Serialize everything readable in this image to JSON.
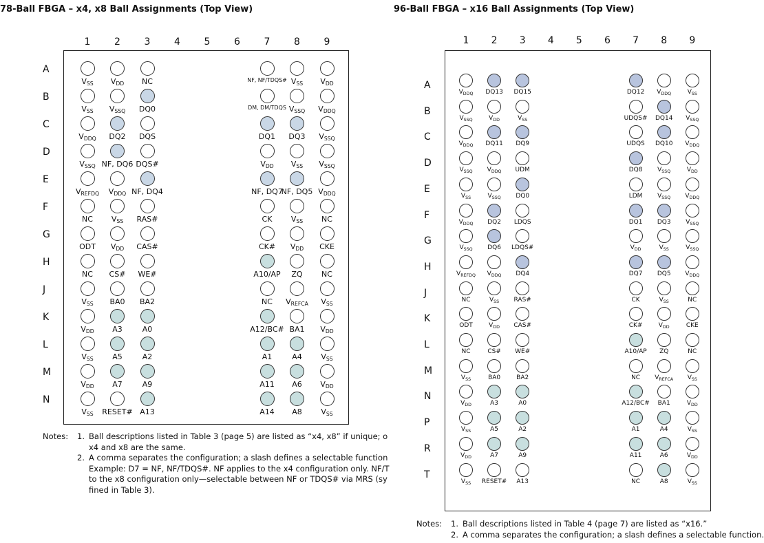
{
  "colors": {
    "dq_fill": "#c9d7e6",
    "dq16_fill": "#b8c4de",
    "addr_fill": "#c8dfdf",
    "outline": "#333333"
  },
  "left": {
    "title": "78-Ball FBGA – x4, x8 Ball Assignments (Top View)",
    "columns": [
      "1",
      "2",
      "3",
      "4",
      "5",
      "6",
      "7",
      "8",
      "9"
    ],
    "rows": [
      {
        "r": "A",
        "b": [
          [
            "V_SS",
            ""
          ],
          [
            "V_DD",
            ""
          ],
          [
            "NC",
            ""
          ],
          [
            "NF, NF/TDQS#",
            "",
            "s"
          ],
          [
            "V_SS",
            ""
          ],
          [
            "V_DD",
            ""
          ]
        ]
      },
      {
        "r": "B",
        "b": [
          [
            "V_SS",
            ""
          ],
          [
            "V_SSQ",
            ""
          ],
          [
            "DQ0",
            "d"
          ],
          [
            "DM, DM/TDQS",
            "",
            "s"
          ],
          [
            "V_SSQ",
            ""
          ],
          [
            "V_DDQ",
            ""
          ]
        ]
      },
      {
        "r": "C",
        "b": [
          [
            "V_DDQ",
            ""
          ],
          [
            "DQ2",
            "d"
          ],
          [
            "DQS",
            ""
          ],
          [
            "DQ1",
            "d"
          ],
          [
            "DQ3",
            "d"
          ],
          [
            "V_SSQ",
            ""
          ]
        ]
      },
      {
        "r": "D",
        "b": [
          [
            "V_SSQ",
            ""
          ],
          [
            "NF, DQ6",
            "d"
          ],
          [
            "DQS#",
            ""
          ],
          [
            "V_DD",
            ""
          ],
          [
            "V_SS",
            ""
          ],
          [
            "V_SSQ",
            ""
          ]
        ]
      },
      {
        "r": "E",
        "b": [
          [
            "V_REFDQ",
            ""
          ],
          [
            "V_DDQ",
            ""
          ],
          [
            "NF, DQ4",
            "d"
          ],
          [
            "NF, DQ7",
            "d"
          ],
          [
            "NF, DQ5",
            "d"
          ],
          [
            "V_DDQ",
            ""
          ]
        ]
      },
      {
        "r": "F",
        "b": [
          [
            "NC",
            ""
          ],
          [
            "V_SS",
            ""
          ],
          [
            "RAS#",
            ""
          ],
          [
            "CK",
            ""
          ],
          [
            "V_SS",
            ""
          ],
          [
            "NC",
            ""
          ]
        ]
      },
      {
        "r": "G",
        "b": [
          [
            "ODT",
            ""
          ],
          [
            "V_DD",
            ""
          ],
          [
            "CAS#",
            ""
          ],
          [
            "CK#",
            ""
          ],
          [
            "V_DD",
            ""
          ],
          [
            "CKE",
            ""
          ]
        ]
      },
      {
        "r": "H",
        "b": [
          [
            "NC",
            ""
          ],
          [
            "CS#",
            ""
          ],
          [
            "WE#",
            ""
          ],
          [
            "A10/AP",
            "a"
          ],
          [
            "ZQ",
            ""
          ],
          [
            "NC",
            ""
          ]
        ]
      },
      {
        "r": "J",
        "b": [
          [
            "V_SS",
            ""
          ],
          [
            "BA0",
            ""
          ],
          [
            "BA2",
            ""
          ],
          [
            "NC",
            ""
          ],
          [
            "V_REFCA",
            ""
          ],
          [
            "V_SS",
            ""
          ]
        ]
      },
      {
        "r": "K",
        "b": [
          [
            "V_DD",
            ""
          ],
          [
            "A3",
            "a"
          ],
          [
            "A0",
            "a"
          ],
          [
            "A12/BC#",
            "a"
          ],
          [
            "BA1",
            ""
          ],
          [
            "V_DD",
            ""
          ]
        ]
      },
      {
        "r": "L",
        "b": [
          [
            "V_SS",
            ""
          ],
          [
            "A5",
            "a"
          ],
          [
            "A2",
            "a"
          ],
          [
            "A1",
            "a"
          ],
          [
            "A4",
            "a"
          ],
          [
            "V_SS",
            ""
          ]
        ]
      },
      {
        "r": "M",
        "b": [
          [
            "V_DD",
            ""
          ],
          [
            "A7",
            "a"
          ],
          [
            "A9",
            "a"
          ],
          [
            "A11",
            "a"
          ],
          [
            "A6",
            "a"
          ],
          [
            "V_DD",
            ""
          ]
        ]
      },
      {
        "r": "N",
        "b": [
          [
            "V_SS",
            ""
          ],
          [
            "RESET#",
            ""
          ],
          [
            "A13",
            "a"
          ],
          [
            "A14",
            "a"
          ],
          [
            "A8",
            "a"
          ],
          [
            "V_SS",
            ""
          ]
        ]
      }
    ],
    "notes": {
      "heading": "Notes:",
      "items": [
        {
          "num": "1.",
          "lines": [
            "Ball descriptions listed in Table 3 (page 5) are listed as “x4, x8” if unique; o",
            "x4 and x8 are the same."
          ]
        },
        {
          "num": "2.",
          "lines": [
            "A comma separates the configuration; a slash defines a selectable function",
            "Example: D7 = NF, NF/TDQS#. NF applies to the x4 configuration only. NF/T",
            "to the x8 configuration only—selectable between NF or TDQS# via MRS (sy",
            "fined in Table 3)."
          ]
        }
      ]
    }
  },
  "right": {
    "title": "96-Ball FBGA – x16 Ball Assignments (Top View)",
    "columns": [
      "1",
      "2",
      "3",
      "4",
      "5",
      "6",
      "7",
      "8",
      "9"
    ],
    "rows": [
      {
        "r": "A",
        "b": [
          [
            "V_DDQ",
            ""
          ],
          [
            "DQ13",
            "d"
          ],
          [
            "DQ15",
            "d"
          ],
          [
            "DQ12",
            "d"
          ],
          [
            "V_DDQ",
            ""
          ],
          [
            "V_SS",
            ""
          ]
        ]
      },
      {
        "r": "B",
        "b": [
          [
            "V_SSQ",
            ""
          ],
          [
            "V_DD",
            ""
          ],
          [
            "V_SS",
            ""
          ],
          [
            "UDQS#",
            ""
          ],
          [
            "DQ14",
            "d"
          ],
          [
            "V_SSQ",
            ""
          ]
        ]
      },
      {
        "r": "C",
        "b": [
          [
            "V_DDQ",
            ""
          ],
          [
            "DQ11",
            "d"
          ],
          [
            "DQ9",
            "d"
          ],
          [
            "UDQS",
            ""
          ],
          [
            "DQ10",
            "d"
          ],
          [
            "V_DDQ",
            ""
          ]
        ]
      },
      {
        "r": "D",
        "b": [
          [
            "V_SSQ",
            ""
          ],
          [
            "V_DDQ",
            ""
          ],
          [
            "UDM",
            ""
          ],
          [
            "DQ8",
            "d"
          ],
          [
            "V_SSQ",
            ""
          ],
          [
            "V_DD",
            ""
          ]
        ]
      },
      {
        "r": "E",
        "b": [
          [
            "V_SS",
            ""
          ],
          [
            "V_SSQ",
            ""
          ],
          [
            "DQ0",
            "d"
          ],
          [
            "LDM",
            ""
          ],
          [
            "V_SSQ",
            ""
          ],
          [
            "V_DDQ",
            ""
          ]
        ]
      },
      {
        "r": "F",
        "b": [
          [
            "V_DDQ",
            ""
          ],
          [
            "DQ2",
            "d"
          ],
          [
            "LDQS",
            ""
          ],
          [
            "DQ1",
            "d"
          ],
          [
            "DQ3",
            "d"
          ],
          [
            "V_SSQ",
            ""
          ]
        ]
      },
      {
        "r": "G",
        "b": [
          [
            "V_SSQ",
            ""
          ],
          [
            "DQ6",
            "d"
          ],
          [
            "LDQS#",
            ""
          ],
          [
            "V_DD",
            ""
          ],
          [
            "V_SS",
            ""
          ],
          [
            "V_SSQ",
            ""
          ]
        ]
      },
      {
        "r": "H",
        "b": [
          [
            "V_REFDQ",
            ""
          ],
          [
            "V_DDQ",
            ""
          ],
          [
            "DQ4",
            "d"
          ],
          [
            "DQ7",
            "d"
          ],
          [
            "DQ5",
            "d"
          ],
          [
            "V_DDQ",
            ""
          ]
        ]
      },
      {
        "r": "J",
        "b": [
          [
            "NC",
            ""
          ],
          [
            "V_SS",
            ""
          ],
          [
            "RAS#",
            ""
          ],
          [
            "CK",
            ""
          ],
          [
            "V_SS",
            ""
          ],
          [
            "NC",
            ""
          ]
        ]
      },
      {
        "r": "K",
        "b": [
          [
            "ODT",
            ""
          ],
          [
            "V_DD",
            ""
          ],
          [
            "CAS#",
            ""
          ],
          [
            "CK#",
            ""
          ],
          [
            "V_DD",
            ""
          ],
          [
            "CKE",
            ""
          ]
        ]
      },
      {
        "r": "L",
        "b": [
          [
            "NC",
            ""
          ],
          [
            "CS#",
            ""
          ],
          [
            "WE#",
            ""
          ],
          [
            "A10/AP",
            "a"
          ],
          [
            "ZQ",
            ""
          ],
          [
            "NC",
            ""
          ]
        ]
      },
      {
        "r": "M",
        "b": [
          [
            "V_SS",
            ""
          ],
          [
            "BA0",
            ""
          ],
          [
            "BA2",
            ""
          ],
          [
            "NC",
            ""
          ],
          [
            "V_REFCA",
            ""
          ],
          [
            "V_SS",
            ""
          ]
        ]
      },
      {
        "r": "N",
        "b": [
          [
            "V_DD",
            ""
          ],
          [
            "A3",
            "a"
          ],
          [
            "A0",
            "a"
          ],
          [
            "A12/BC#",
            "a"
          ],
          [
            "BA1",
            ""
          ],
          [
            "V_DD",
            ""
          ]
        ]
      },
      {
        "r": "P",
        "b": [
          [
            "V_SS",
            ""
          ],
          [
            "A5",
            "a"
          ],
          [
            "A2",
            "a"
          ],
          [
            "A1",
            "a"
          ],
          [
            "A4",
            "a"
          ],
          [
            "V_SS",
            ""
          ]
        ]
      },
      {
        "r": "R",
        "b": [
          [
            "V_DD",
            ""
          ],
          [
            "A7",
            "a"
          ],
          [
            "A9",
            "a"
          ],
          [
            "A11",
            "a"
          ],
          [
            "A6",
            "a"
          ],
          [
            "V_DD",
            ""
          ]
        ]
      },
      {
        "r": "T",
        "b": [
          [
            "V_SS",
            ""
          ],
          [
            "RESET#",
            ""
          ],
          [
            "A13",
            ""
          ],
          [
            "NC",
            ""
          ],
          [
            "A8",
            "a"
          ],
          [
            "V_SS",
            ""
          ]
        ]
      }
    ],
    "notes": {
      "heading": "Notes:",
      "items": [
        {
          "num": "1.",
          "lines": [
            "Ball descriptions listed in Table 4 (page 7) are listed as “x16.”"
          ]
        },
        {
          "num": "2.",
          "lines": [
            "A comma separates the configuration; a slash defines a selectable function."
          ]
        }
      ]
    }
  }
}
